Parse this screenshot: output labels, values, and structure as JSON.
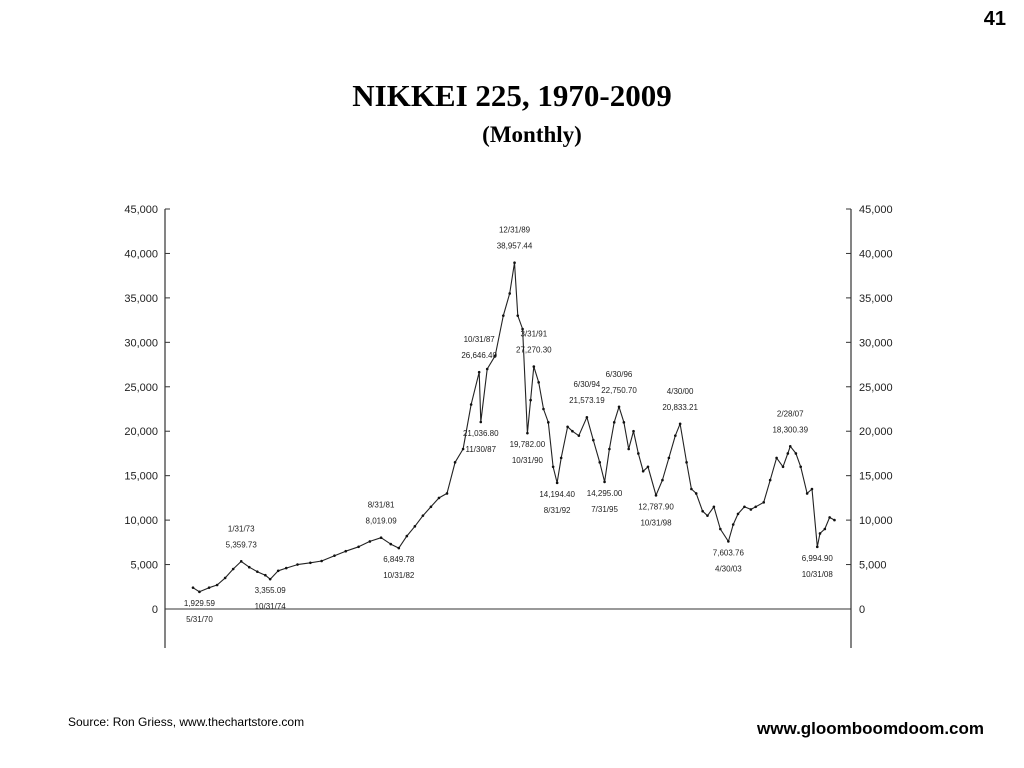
{
  "page_number": "41",
  "title": "NIKKEI  225,  1970-2009",
  "subtitle": "(Monthly)",
  "source": "Source:  Ron Griess, www.thechartstore.com",
  "website": "www.gloomboomdoom.com",
  "chart_data": {
    "type": "line",
    "ylim": [
      0,
      45000
    ],
    "yticks": [
      "0",
      "5,000",
      "10,000",
      "15,000",
      "20,000",
      "25,000",
      "30,000",
      "35,000",
      "40,000",
      "45,000"
    ],
    "xlim": [
      1970,
      2009
    ],
    "grid": false,
    "series": [
      {
        "x": [
          1970.0,
          1970.4,
          1971.0,
          1971.5,
          1972.0,
          1972.5,
          1973.0,
          1973.5,
          1974.0,
          1974.5,
          1974.8,
          1975.3,
          1975.8,
          1976.5,
          1977.3,
          1978.0,
          1978.8,
          1979.5,
          1980.3,
          1981.0,
          1981.7,
          1982.3,
          1982.8,
          1983.3,
          1983.8,
          1984.3,
          1984.8,
          1985.3,
          1985.8,
          1986.3,
          1986.8,
          1987.3,
          1987.8,
          1987.9,
          1988.3,
          1988.8,
          1989.3,
          1989.7,
          1990.0,
          1990.2,
          1990.5,
          1990.8,
          1991.0,
          1991.2,
          1991.5,
          1991.8,
          1992.1,
          1992.4,
          1992.65,
          1992.9,
          1993.3,
          1993.6,
          1994.0,
          1994.5,
          1994.9,
          1995.3,
          1995.6,
          1995.9,
          1996.2,
          1996.5,
          1996.8,
          1997.1,
          1997.4,
          1997.7,
          1998.0,
          1998.3,
          1998.8,
          1999.2,
          1999.6,
          2000.0,
          2000.3,
          2000.7,
          2001.0,
          2001.3,
          2001.7,
          2002.0,
          2002.4,
          2002.8,
          2003.3,
          2003.6,
          2003.9,
          2004.3,
          2004.7,
          2005.0,
          2005.5,
          2005.9,
          2006.3,
          2006.7,
          2007.0,
          2007.15,
          2007.5,
          2007.8,
          2008.2,
          2008.5,
          2008.83,
          2009.0,
          2009.3,
          2009.6,
          2009.9
        ],
        "values": [
          2400,
          1930,
          2400,
          2700,
          3500,
          4500,
          5360,
          4700,
          4200,
          3800,
          3355,
          4300,
          4600,
          5000,
          5200,
          5400,
          6000,
          6500,
          7000,
          7600,
          8019,
          7300,
          6850,
          8200,
          9300,
          10500,
          11500,
          12500,
          13000,
          16500,
          18000,
          23000,
          26646,
          21037,
          27000,
          28500,
          33000,
          35500,
          38957,
          33000,
          31500,
          19782,
          23500,
          27270,
          25500,
          22500,
          21000,
          16000,
          14194,
          17000,
          20500,
          20000,
          19500,
          21573,
          19000,
          16500,
          14295,
          18000,
          21000,
          22751,
          21000,
          18000,
          20000,
          17500,
          15500,
          16000,
          12788,
          14500,
          17000,
          19500,
          20833,
          16500,
          13500,
          13000,
          11000,
          10500,
          11500,
          9000,
          7604,
          9500,
          10700,
          11500,
          11200,
          11500,
          12000,
          14500,
          17000,
          16000,
          17500,
          18300,
          17500,
          16000,
          13000,
          13500,
          6995,
          8500,
          9000,
          10300,
          10000
        ]
      }
    ],
    "annotations": [
      {
        "x": 1970.4,
        "y": 1930,
        "date": "5/31/70",
        "value": "1,929.59",
        "pos": "below"
      },
      {
        "x": 1973.0,
        "y": 5360,
        "date": "1/31/73",
        "value": "5,359.73",
        "pos": "above"
      },
      {
        "x": 1974.8,
        "y": 3355,
        "date": "10/31/74",
        "value": "3,355.09",
        "pos": "below"
      },
      {
        "x": 1981.7,
        "y": 8019,
        "date": "8/31/81",
        "value": "8,019.09",
        "pos": "above"
      },
      {
        "x": 1982.8,
        "y": 6850,
        "date": "10/31/82",
        "value": "6,849.78",
        "pos": "below"
      },
      {
        "x": 1987.8,
        "y": 26646,
        "date": "10/31/87",
        "value": "26,646.40",
        "pos": "above"
      },
      {
        "x": 1987.9,
        "y": 21037,
        "date": "11/30/87",
        "value": "21,036.80",
        "pos": "below"
      },
      {
        "x": 1990.0,
        "y": 38957,
        "date": "12/31/89",
        "value": "38,957.44",
        "pos": "above"
      },
      {
        "x": 1990.8,
        "y": 19782,
        "date": "10/31/90",
        "value": "19,782.00",
        "pos": "below"
      },
      {
        "x": 1991.2,
        "y": 27270,
        "date": "3/31/91",
        "value": "27,270.30",
        "pos": "above"
      },
      {
        "x": 1992.65,
        "y": 14194,
        "date": "8/31/92",
        "value": "14,194.40",
        "pos": "below"
      },
      {
        "x": 1994.5,
        "y": 21573,
        "date": "6/30/94",
        "value": "21,573.19",
        "pos": "above"
      },
      {
        "x": 1995.6,
        "y": 14295,
        "date": "7/31/95",
        "value": "14,295.00",
        "pos": "below"
      },
      {
        "x": 1996.5,
        "y": 22751,
        "date": "6/30/96",
        "value": "22,750.70",
        "pos": "above"
      },
      {
        "x": 1998.8,
        "y": 12788,
        "date": "10/31/98",
        "value": "12,787.90",
        "pos": "below"
      },
      {
        "x": 2000.3,
        "y": 20833,
        "date": "4/30/00",
        "value": "20,833.21",
        "pos": "above"
      },
      {
        "x": 2003.3,
        "y": 7604,
        "date": "4/30/03",
        "value": "7,603.76",
        "pos": "below"
      },
      {
        "x": 2007.15,
        "y": 18300,
        "date": "2/28/07",
        "value": "18,300.39",
        "pos": "above"
      },
      {
        "x": 2008.83,
        "y": 6995,
        "date": "10/31/08",
        "value": "6,994.90",
        "pos": "below"
      }
    ]
  }
}
